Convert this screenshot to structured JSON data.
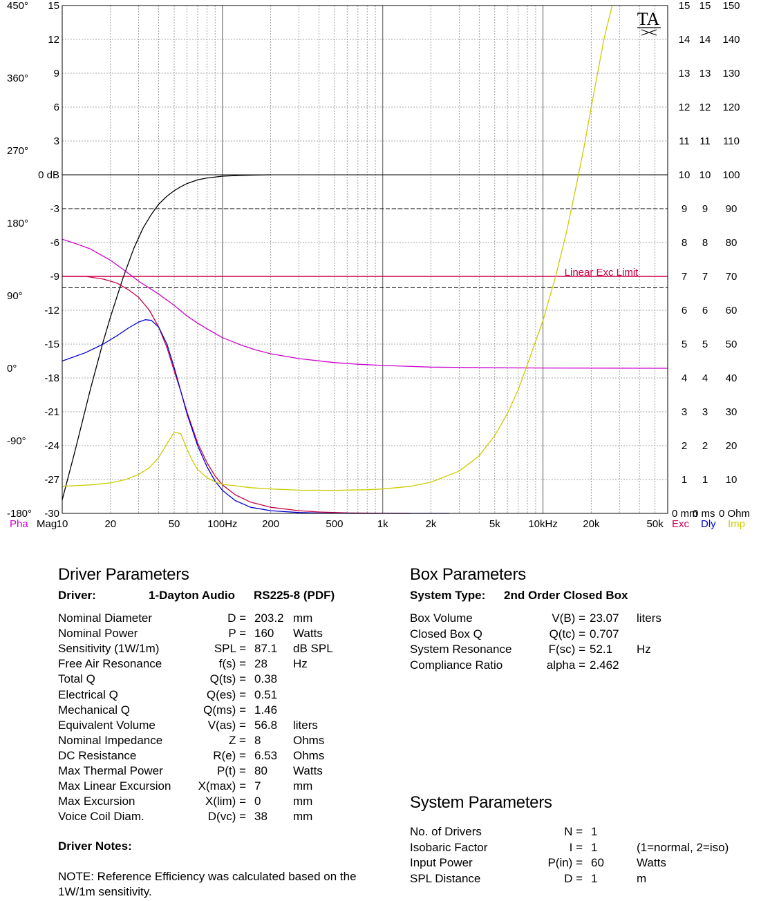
{
  "chart_data": {
    "type": "line",
    "logo": "TA",
    "x_scale": "log",
    "x_range_hz": [
      10,
      60000
    ],
    "x_tick_labels": [
      {
        "hz": 10,
        "label": "10"
      },
      {
        "hz": 20,
        "label": "20"
      },
      {
        "hz": 50,
        "label": "50"
      },
      {
        "hz": 100,
        "label": "100Hz"
      },
      {
        "hz": 200,
        "label": "200"
      },
      {
        "hz": 500,
        "label": "500"
      },
      {
        "hz": 1000,
        "label": "1k"
      },
      {
        "hz": 2000,
        "label": "2k"
      },
      {
        "hz": 5000,
        "label": "5k"
      },
      {
        "hz": 10000,
        "label": "10kHz"
      },
      {
        "hz": 20000,
        "label": "20k"
      },
      {
        "hz": 50000,
        "label": "50k"
      }
    ],
    "mag_axis": {
      "range_db": [
        -30,
        15
      ],
      "ticks": [
        15,
        12,
        9,
        6,
        3,
        0,
        -3,
        -6,
        -9,
        -12,
        -15,
        -18,
        -21,
        -24,
        -27,
        -30
      ],
      "zero_label": "0 dB"
    },
    "phase_axis": {
      "ticks": [
        "450°",
        "360°",
        "270°",
        "180°",
        "90°",
        "0°",
        "-90°",
        "-180°"
      ]
    },
    "right_axes": {
      "exc_mm": [
        "15",
        "14",
        "13",
        "12",
        "11",
        "10",
        "9",
        "8",
        "7",
        "6",
        "5",
        "4",
        "3",
        "2",
        "1",
        "0 mm"
      ],
      "dly_ms": [
        "15",
        "14",
        "13",
        "12",
        "11",
        "10",
        "9",
        "8",
        "7",
        "6",
        "5",
        "4",
        "3",
        "2",
        "1",
        "0 ms"
      ],
      "imp_ohm": [
        "150",
        "140",
        "130",
        "120",
        "110",
        "100",
        "90",
        "80",
        "70",
        "60",
        "50",
        "40",
        "30",
        "20",
        "10",
        "0 Ohm"
      ]
    },
    "left_labels": [
      {
        "text": "Pha",
        "color": "#cc00cc"
      },
      {
        "text": "Mag",
        "color": "#000000"
      }
    ],
    "right_labels": [
      {
        "text": "Exc",
        "color": "#cc0055"
      },
      {
        "text": "Dly",
        "color": "#0000cc"
      },
      {
        "text": "Imp",
        "color": "#cccc00"
      }
    ],
    "annotation": "Linear Exc Limit",
    "series": [
      {
        "key": "mag",
        "color": "#000000",
        "unit": "dB",
        "points": [
          [
            10,
            -28.8
          ],
          [
            12,
            -24.5
          ],
          [
            15,
            -19.0
          ],
          [
            18,
            -14.8
          ],
          [
            20,
            -12.6
          ],
          [
            24,
            -9.1
          ],
          [
            28,
            -6.5
          ],
          [
            32,
            -4.7
          ],
          [
            36,
            -3.5
          ],
          [
            40,
            -2.6
          ],
          [
            45,
            -1.9
          ],
          [
            50,
            -1.4
          ],
          [
            55,
            -1.05
          ],
          [
            60,
            -0.78
          ],
          [
            70,
            -0.45
          ],
          [
            80,
            -0.28
          ],
          [
            100,
            -0.12
          ],
          [
            130,
            -0.05
          ],
          [
            160,
            -0.02
          ],
          [
            200,
            0.0
          ]
        ]
      },
      {
        "key": "pha",
        "color": "#cc00cc",
        "unit": "deg",
        "points": [
          [
            10,
            160.0
          ],
          [
            12,
            155.0
          ],
          [
            15,
            148.0
          ],
          [
            20,
            134.0
          ],
          [
            25,
            120.0
          ],
          [
            30,
            108.0
          ],
          [
            40,
            92.0
          ],
          [
            50,
            78.0
          ],
          [
            60,
            65.0
          ],
          [
            70,
            56.0
          ],
          [
            80,
            49.0
          ],
          [
            100,
            38.0
          ],
          [
            130,
            29.0
          ],
          [
            160,
            23.0
          ],
          [
            200,
            18.0
          ],
          [
            300,
            12.0
          ],
          [
            500,
            7.0
          ],
          [
            700,
            5.0
          ],
          [
            1000,
            3.5
          ],
          [
            2000,
            1.5
          ],
          [
            5000,
            0.6
          ],
          [
            10000,
            0.3
          ],
          [
            60000,
            0.0
          ]
        ]
      },
      {
        "key": "exc",
        "color": "#cc0044",
        "unit": "mm",
        "points": [
          [
            10,
            7.0
          ],
          [
            14,
            7.0
          ],
          [
            18,
            6.92
          ],
          [
            22,
            6.8
          ],
          [
            26,
            6.6
          ],
          [
            30,
            6.38
          ],
          [
            35,
            6.0
          ],
          [
            40,
            5.5
          ],
          [
            45,
            4.9
          ],
          [
            50,
            4.2
          ],
          [
            55,
            3.6
          ],
          [
            60,
            3.0
          ],
          [
            70,
            2.08
          ],
          [
            80,
            1.5
          ],
          [
            90,
            1.1
          ],
          [
            100,
            0.84
          ],
          [
            120,
            0.55
          ],
          [
            150,
            0.33
          ],
          [
            200,
            0.18
          ],
          [
            300,
            0.08
          ],
          [
            400,
            0.04
          ],
          [
            600,
            0.015
          ],
          [
            1000,
            0.005
          ],
          [
            1500,
            0.0
          ]
        ]
      },
      {
        "key": "dly",
        "color": "#0000cc",
        "unit": "ms",
        "points": [
          [
            10,
            4.5
          ],
          [
            14,
            4.75
          ],
          [
            18,
            5.0
          ],
          [
            22,
            5.25
          ],
          [
            26,
            5.48
          ],
          [
            30,
            5.65
          ],
          [
            33,
            5.72
          ],
          [
            36,
            5.7
          ],
          [
            40,
            5.5
          ],
          [
            45,
            5.0
          ],
          [
            50,
            4.3
          ],
          [
            55,
            3.6
          ],
          [
            60,
            2.95
          ],
          [
            70,
            2.0
          ],
          [
            80,
            1.38
          ],
          [
            90,
            0.95
          ],
          [
            100,
            0.68
          ],
          [
            120,
            0.38
          ],
          [
            150,
            0.18
          ],
          [
            200,
            0.08
          ],
          [
            300,
            0.025
          ],
          [
            400,
            0.01
          ],
          [
            700,
            0.0
          ],
          [
            2600,
            0.0
          ]
        ]
      },
      {
        "key": "imp",
        "color": "#cccc00",
        "unit": "ohm",
        "points": [
          [
            10,
            8.0
          ],
          [
            15,
            8.4
          ],
          [
            20,
            9.0
          ],
          [
            25,
            10.0
          ],
          [
            30,
            11.5
          ],
          [
            35,
            13.5
          ],
          [
            40,
            16.5
          ],
          [
            45,
            20.5
          ],
          [
            50,
            24.0
          ],
          [
            55,
            23.5
          ],
          [
            60,
            19.0
          ],
          [
            65,
            15.5
          ],
          [
            70,
            13.0
          ],
          [
            80,
            10.5
          ],
          [
            90,
            9.3
          ],
          [
            100,
            8.6
          ],
          [
            150,
            7.6
          ],
          [
            200,
            7.2
          ],
          [
            300,
            6.85
          ],
          [
            500,
            6.8
          ],
          [
            800,
            7.0
          ],
          [
            1000,
            7.2
          ],
          [
            1500,
            8.0
          ],
          [
            2000,
            9.2
          ],
          [
            3000,
            12.5
          ],
          [
            4000,
            17.0
          ],
          [
            5000,
            23.0
          ],
          [
            6000,
            29.5
          ],
          [
            7000,
            36.5
          ],
          [
            8000,
            44.0
          ],
          [
            10000,
            57.0
          ],
          [
            12000,
            70.0
          ],
          [
            14000,
            83.0
          ],
          [
            16000,
            96.0
          ],
          [
            18000,
            108.0
          ],
          [
            20000,
            120.0
          ],
          [
            24000,
            140.0
          ],
          [
            27000,
            150.0
          ]
        ]
      }
    ],
    "reference_lines": [
      {
        "key": "zero_db",
        "style": "solid",
        "color": "#000000",
        "value_db": 0
      },
      {
        "key": "minus3_db",
        "style": "dashed",
        "color": "#000000",
        "value_db": -3
      },
      {
        "key": "exc_limit",
        "style": "solid",
        "color": "#cc0044",
        "value_mm": 7
      },
      {
        "key": "exc_limit_dashed",
        "style": "dashed",
        "color": "#000000",
        "value_db": -10.0
      }
    ]
  },
  "driver": {
    "section_title": "Driver Parameters",
    "label": "Driver:",
    "name": "1-Dayton Audio",
    "model": "RS225-8 (PDF)",
    "params": [
      {
        "name": "Nominal Diameter",
        "sym": "D =",
        "val": "203.2",
        "unit": "mm"
      },
      {
        "name": "Nominal Power",
        "sym": "P =",
        "val": "160",
        "unit": "Watts"
      },
      {
        "name": "Sensitivity (1W/1m)",
        "sym": "SPL =",
        "val": "87.1",
        "unit": "dB SPL"
      },
      {
        "name": "Free Air Resonance",
        "sym": "f(s) =",
        "val": "28",
        "unit": "Hz"
      },
      {
        "name": "Total Q",
        "sym": "Q(ts) =",
        "val": "0.38",
        "unit": ""
      },
      {
        "name": "Electrical Q",
        "sym": "Q(es) =",
        "val": "0.51",
        "unit": ""
      },
      {
        "name": "Mechanical Q",
        "sym": "Q(ms) =",
        "val": "1.46",
        "unit": ""
      },
      {
        "name": "Equivalent Volume",
        "sym": "V(as) =",
        "val": "56.8",
        "unit": "liters"
      },
      {
        "name": "Nominal Impedance",
        "sym": "Z =",
        "val": "8",
        "unit": "Ohms"
      },
      {
        "name": "DC Resistance",
        "sym": "R(e) =",
        "val": "6.53",
        "unit": "Ohms"
      },
      {
        "name": "Max Thermal Power",
        "sym": "P(t) =",
        "val": "80",
        "unit": "Watts"
      },
      {
        "name": "Max Linear Excursion",
        "sym": "X(max) =",
        "val": "7",
        "unit": "mm"
      },
      {
        "name": "Max Excursion",
        "sym": "X(lim) =",
        "val": "0",
        "unit": "mm"
      },
      {
        "name": "Voice Coil Diam.",
        "sym": "D(vc) =",
        "val": "38",
        "unit": "mm"
      }
    ],
    "notes_title": "Driver Notes:",
    "note_line1": "NOTE: Reference Efficiency was calculated based on the",
    "note_line2": "1W/1m sensitivity."
  },
  "box": {
    "section_title": "Box Parameters",
    "system_type_label": "System Type:",
    "system_type": "2nd Order Closed Box",
    "params": [
      {
        "name": "Box Volume",
        "sym": "V(B) =",
        "val": "23.07",
        "unit": "liters"
      },
      {
        "name": "Closed Box Q",
        "sym": "Q(tc) =",
        "val": "0.707",
        "unit": ""
      },
      {
        "name": "System Resonance",
        "sym": "F(sc) =",
        "val": "52.1",
        "unit": "Hz"
      },
      {
        "name": "Compliance Ratio",
        "sym": "alpha =",
        "val": "2.462",
        "unit": ""
      }
    ]
  },
  "system": {
    "section_title": "System Parameters",
    "params": [
      {
        "name": "No. of Drivers",
        "sym": "N =",
        "val": "1",
        "unit": ""
      },
      {
        "name": "Isobaric Factor",
        "sym": "I =",
        "val": "1",
        "unit": "(1=normal, 2=iso)"
      },
      {
        "name": "Input Power",
        "sym": "P(in) =",
        "val": "60",
        "unit": "Watts"
      },
      {
        "name": "SPL Distance",
        "sym": "D =",
        "val": "1",
        "unit": "m"
      }
    ]
  }
}
